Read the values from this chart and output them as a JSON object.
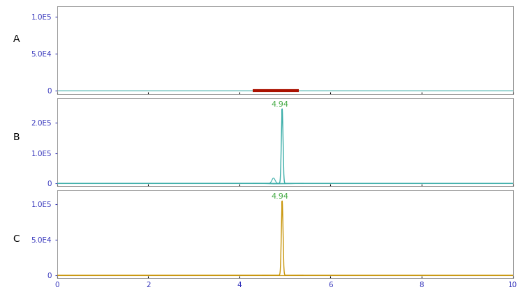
{
  "panel_A": {
    "label": "A",
    "line_color": "#3aada8",
    "red_segment": {
      "x_start": 4.3,
      "x_end": 5.3,
      "y": 0,
      "color": "#aa1100",
      "linewidth": 3
    },
    "ylim": [
      -4000,
      115000
    ],
    "yticks": [
      0,
      50000,
      100000
    ],
    "ytick_labels": [
      "0",
      "5.0E4",
      "1.0E5"
    ],
    "xlim": [
      0,
      10
    ],
    "xticks": [
      0,
      2,
      4,
      6,
      8,
      10
    ]
  },
  "panel_B": {
    "label": "B",
    "line_color": "#3aada8",
    "peak_x": 4.94,
    "peak_y": 245000,
    "peak_sigma": 0.018,
    "peak_label": "4.94",
    "peak_label_color": "#44aa44",
    "ylim": [
      -8000,
      280000
    ],
    "yticks": [
      0,
      100000,
      200000
    ],
    "ytick_labels": [
      "0",
      "1.0E5",
      "2.0E5"
    ],
    "xlim": [
      0,
      10
    ],
    "xticks": [
      0,
      2,
      4,
      6,
      8,
      10
    ],
    "noise_bump_x": 4.75,
    "noise_bump_y": 18000,
    "noise_bump_sigma": 0.035
  },
  "panel_C": {
    "label": "C",
    "line_color": "#c8950a",
    "peak_x": 4.94,
    "peak_y": 105000,
    "peak_sigma": 0.018,
    "peak_label": "4.94",
    "peak_label_color": "#44aa44",
    "ylim": [
      -4000,
      120000
    ],
    "yticks": [
      0,
      50000,
      100000
    ],
    "ytick_labels": [
      "0",
      "5.0E4",
      "1.0E5"
    ],
    "xlim": [
      0,
      10
    ],
    "xticks": [
      0,
      2,
      4,
      6,
      8,
      10
    ]
  },
  "background_color": "#ffffff",
  "text_color": "#3333bb",
  "label_fontsize": 10,
  "tick_fontsize": 7.5,
  "peak_label_fontsize": 8
}
